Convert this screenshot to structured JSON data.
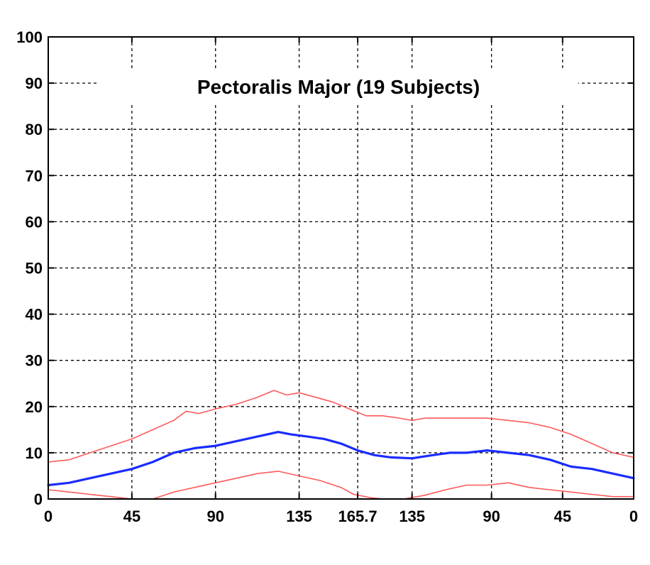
{
  "chart_data": {
    "type": "line",
    "title": "Pectoralis Major (19 Subjects)",
    "xlabel": "",
    "ylabel": "",
    "ylim": [
      0,
      100
    ],
    "xlim": [
      0,
      14
    ],
    "grid": true,
    "x_ticks": [
      {
        "pos": 0,
        "label": "0"
      },
      {
        "pos": 2,
        "label": "45"
      },
      {
        "pos": 4,
        "label": "90"
      },
      {
        "pos": 6,
        "label": "135"
      },
      {
        "pos": 7.4,
        "label": "165.7"
      },
      {
        "pos": 8.7,
        "label": "135"
      },
      {
        "pos": 10.6,
        "label": "90"
      },
      {
        "pos": 12.3,
        "label": "45"
      },
      {
        "pos": 14,
        "label": "0"
      }
    ],
    "y_ticks": [
      0,
      10,
      20,
      30,
      40,
      50,
      60,
      70,
      80,
      90,
      100
    ],
    "series": [
      {
        "color": "#ff5a5a",
        "width": 1.6,
        "x": [
          0,
          0.5,
          1,
          1.5,
          2,
          2.5,
          3,
          3.3,
          3.6,
          4,
          4.5,
          5,
          5.4,
          5.7,
          6,
          6.4,
          6.8,
          7.2,
          7.6,
          8,
          8.4,
          8.7,
          9,
          9.5,
          10,
          10.5,
          11,
          11.5,
          12,
          12.5,
          13,
          13.5,
          14
        ],
        "values": [
          8,
          8.5,
          10,
          11.5,
          13,
          15,
          17,
          19,
          18.5,
          19.5,
          20.5,
          22,
          23.5,
          22.5,
          23,
          22,
          21,
          19.5,
          18,
          18,
          17.5,
          17,
          17.5,
          17.5,
          17.5,
          17.5,
          17,
          16.5,
          15.5,
          14,
          12,
          10,
          9
        ]
      },
      {
        "color": "#1a2cff",
        "width": 3.2,
        "x": [
          0,
          0.5,
          1,
          1.5,
          2,
          2.5,
          3,
          3.5,
          4,
          4.5,
          5,
          5.5,
          5.8,
          6.2,
          6.6,
          7,
          7.4,
          7.8,
          8.2,
          8.7,
          9.2,
          9.6,
          10,
          10.5,
          11,
          11.5,
          12,
          12.5,
          13,
          13.5,
          14
        ],
        "values": [
          3,
          3.5,
          4.5,
          5.5,
          6.5,
          8,
          10,
          11,
          11.5,
          12.5,
          13.5,
          14.5,
          14,
          13.5,
          13,
          12,
          10.5,
          9.5,
          9,
          8.8,
          9.5,
          10,
          10,
          10.5,
          10,
          9.5,
          8.5,
          7,
          6.5,
          5.5,
          4.5
        ]
      },
      {
        "color": "#ff5a5a",
        "width": 1.6,
        "x": [
          0,
          0.5,
          1,
          1.5,
          2,
          2.5,
          3,
          3.5,
          4,
          4.5,
          5,
          5.5,
          6,
          6.5,
          7,
          7.3,
          7.7,
          8,
          8.5,
          9,
          9.5,
          10,
          10.5,
          11,
          11.5,
          12,
          12.5,
          13,
          13.5,
          14
        ],
        "values": [
          2,
          1.5,
          1,
          0.5,
          0,
          0,
          1.5,
          2.5,
          3.5,
          4.5,
          5.5,
          6,
          5,
          4,
          2.5,
          1,
          0.3,
          0,
          0,
          0.8,
          2,
          3,
          3,
          3.5,
          2.5,
          2,
          1.5,
          1,
          0.5,
          0.5
        ]
      }
    ]
  }
}
